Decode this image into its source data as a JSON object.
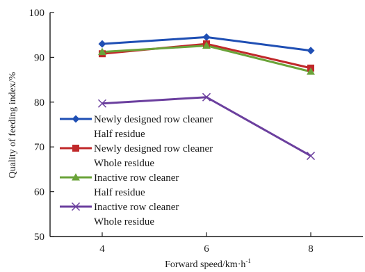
{
  "chart_data": {
    "type": "line",
    "x": [
      4,
      6,
      8
    ],
    "xticks": [
      "4",
      "6",
      "8"
    ],
    "yticks": [
      "50",
      "60",
      "70",
      "80",
      "90",
      "100"
    ],
    "xlabel": "Forward speed/km·h",
    "xlabel_sup": "-1",
    "ylabel": "Quality of feeding index/%",
    "xlim": [
      3,
      9
    ],
    "ylim": [
      50,
      100
    ],
    "grid": false,
    "legend_position": "left-center",
    "series": [
      {
        "legend_line1": "Newly designed row cleaner",
        "legend_line2": "Half residue",
        "values": [
          93.0,
          94.5,
          91.5
        ],
        "color": "#1f4fb4",
        "marker": "diamond"
      },
      {
        "legend_line1": "Newly designed row cleaner",
        "legend_line2": "Whole residue",
        "values": [
          90.8,
          93.0,
          87.6
        ],
        "color": "#c0282a",
        "marker": "square"
      },
      {
        "legend_line1": "Inactive row cleaner",
        "legend_line2": "Half residue",
        "values": [
          91.2,
          92.6,
          86.8
        ],
        "color": "#6aa339",
        "marker": "triangle"
      },
      {
        "legend_line1": "Inactive row cleaner",
        "legend_line2": "Whole residue",
        "values": [
          79.7,
          81.1,
          68.0
        ],
        "color": "#6b3f9e",
        "marker": "x"
      }
    ]
  }
}
